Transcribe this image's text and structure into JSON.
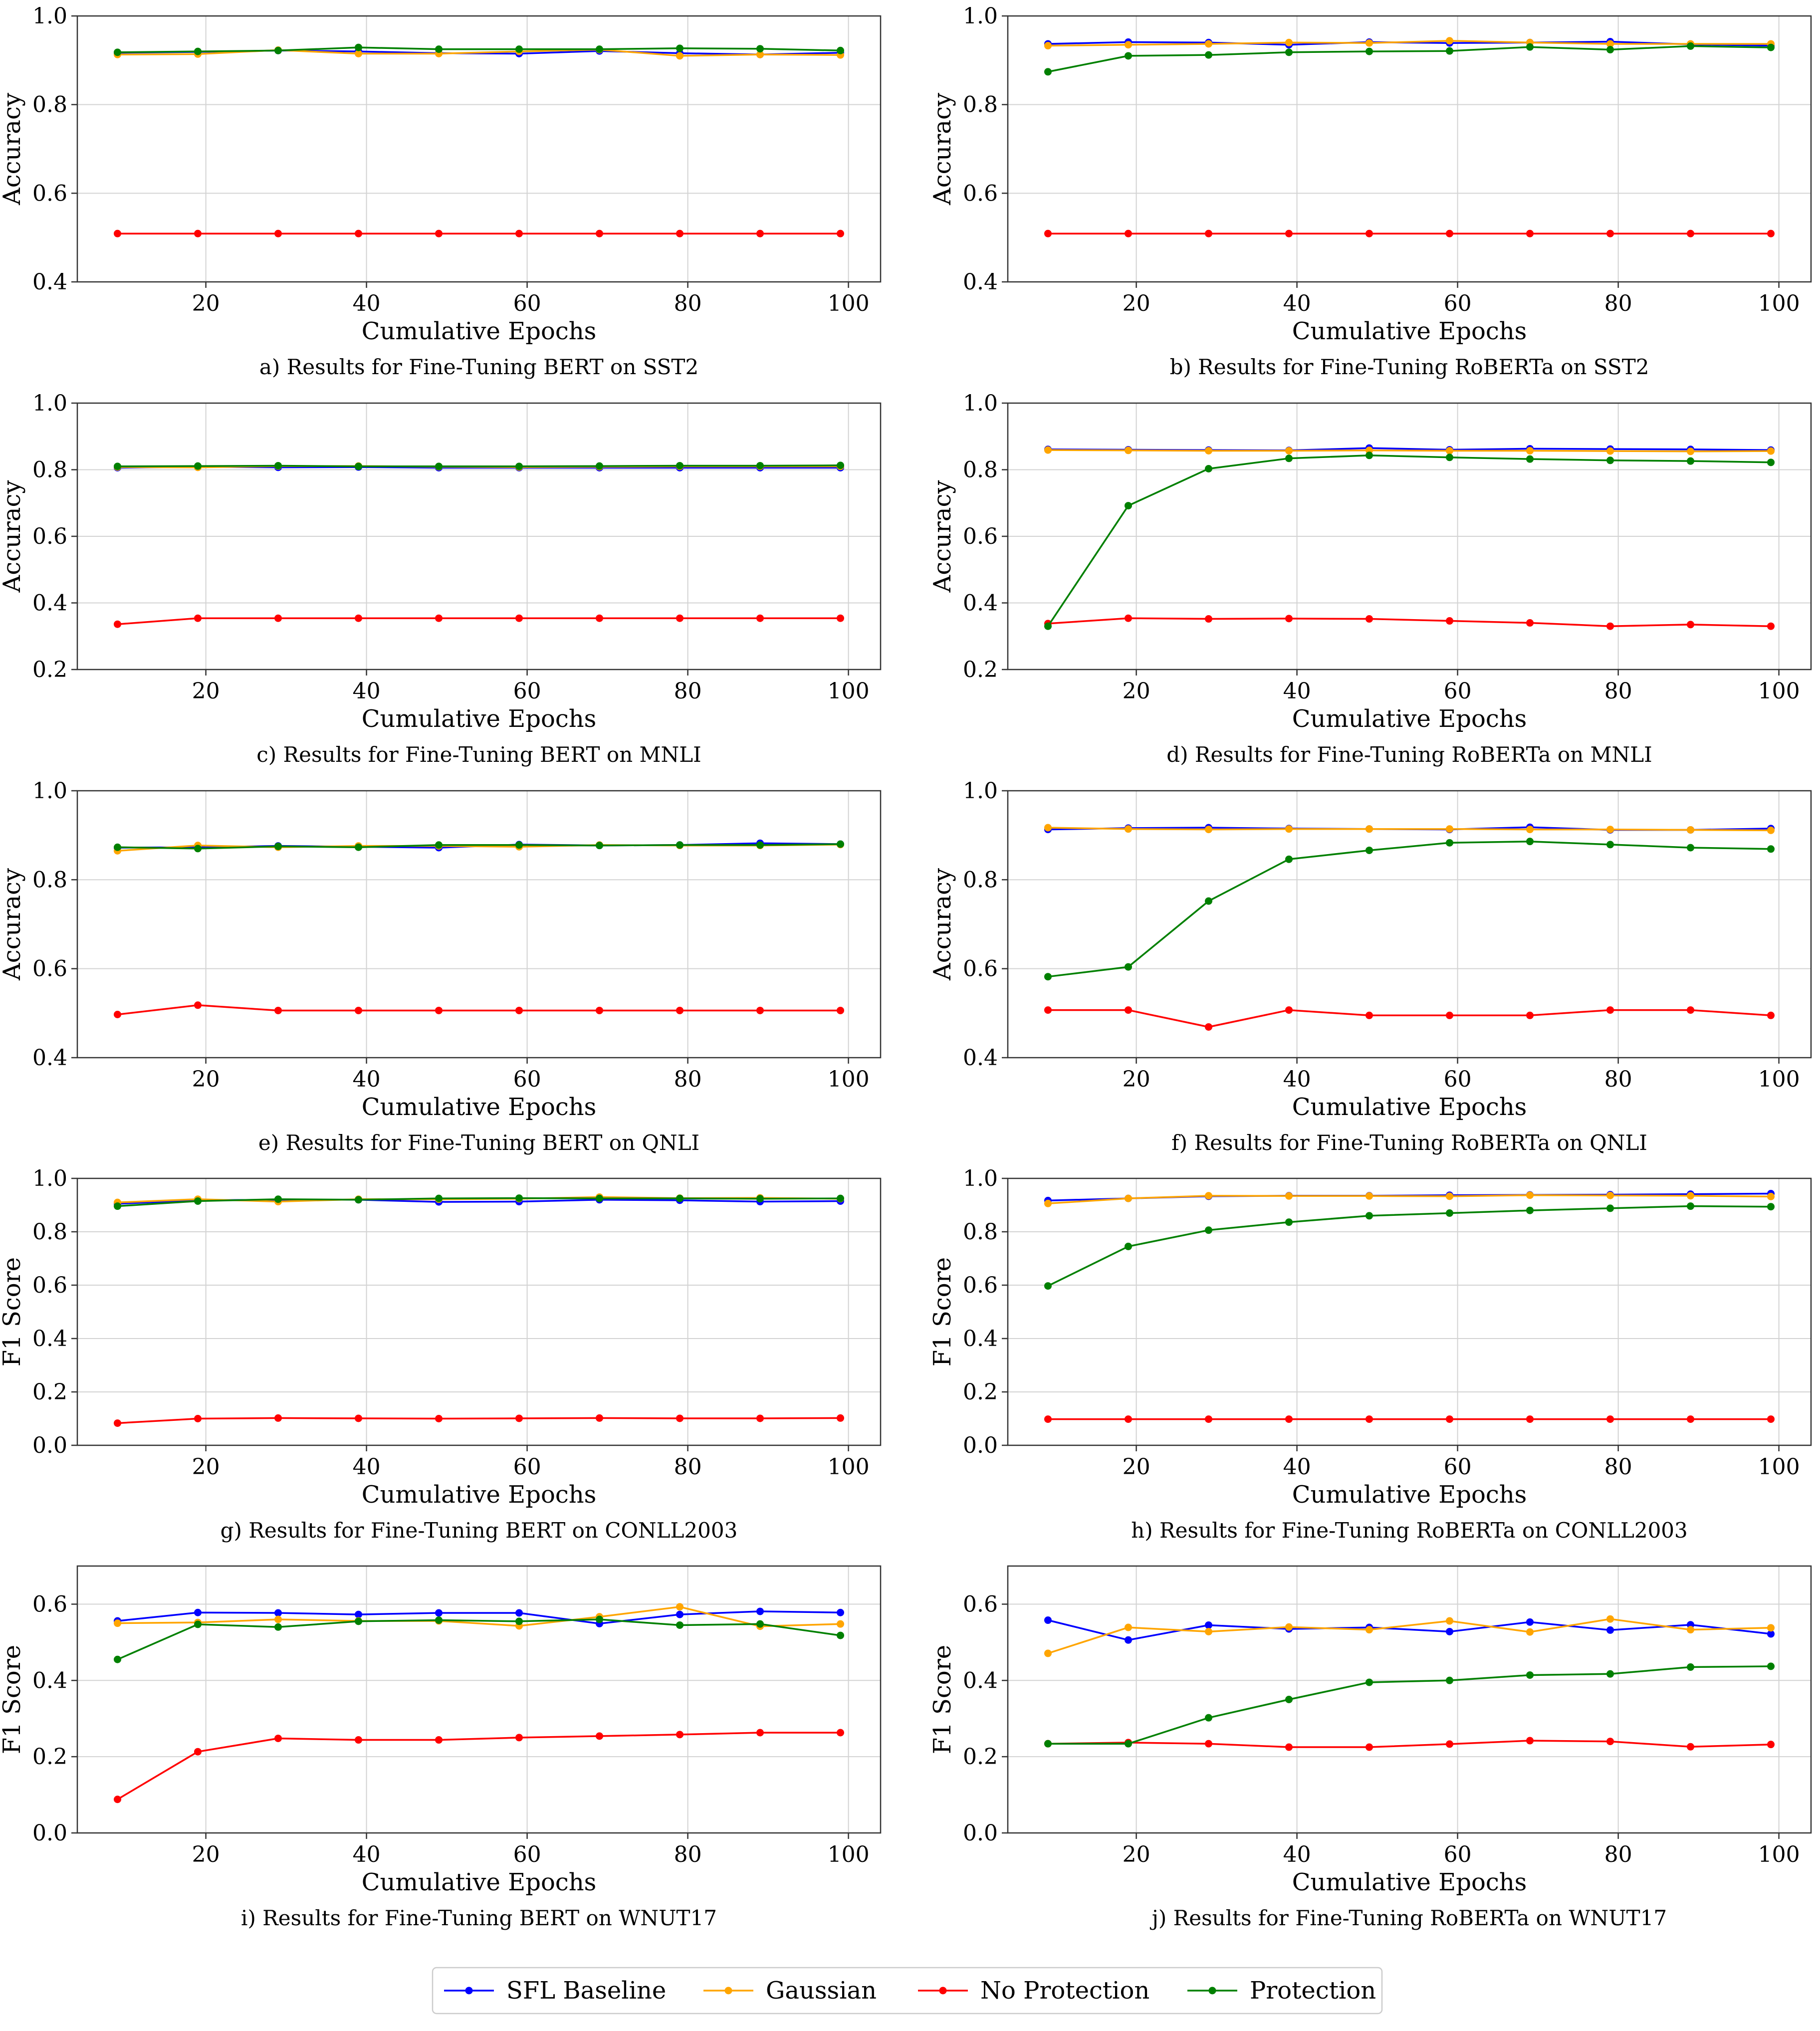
{
  "series_styles": [
    {
      "key": "baseline",
      "name": "SFL Baseline",
      "color": "#0000ff"
    },
    {
      "key": "gaussian",
      "name": "Gaussian",
      "color": "#ffa500"
    },
    {
      "key": "noprot",
      "name": "No Protection",
      "color": "#ff0000"
    },
    {
      "key": "prot",
      "name": "Protection",
      "color": "#008000"
    }
  ],
  "legend": {
    "placement": "bottom-center",
    "entries": [
      "SFL Baseline",
      "Gaussian",
      "No Protection",
      "Protection"
    ]
  },
  "chart_data": [
    {
      "id": "a",
      "type": "line",
      "caption": "a) Results for Fine-Tuning BERT on SST2",
      "xlabel": "Cumulative Epochs",
      "ylabel": "Accuracy",
      "xlim": [
        4,
        104
      ],
      "ylim": [
        0.4,
        1.0
      ],
      "xticks": [
        20,
        40,
        60,
        80,
        100
      ],
      "yticks": [
        0.4,
        0.6,
        0.8,
        1.0
      ],
      "xticklabels": [
        "20",
        "40",
        "60",
        "80",
        "100"
      ],
      "yticklabels": [
        "0.4",
        "0.6",
        "0.8",
        "1.0"
      ],
      "x": [
        9,
        19,
        29,
        39,
        49,
        59,
        69,
        79,
        89,
        99
      ],
      "series": [
        {
          "name": "SFL Baseline",
          "values": [
            0.917,
            0.919,
            0.922,
            0.92,
            0.916,
            0.915,
            0.921,
            0.916,
            0.913,
            0.917
          ]
        },
        {
          "name": "Gaussian",
          "values": [
            0.913,
            0.914,
            0.923,
            0.915,
            0.915,
            0.92,
            0.924,
            0.91,
            0.913,
            0.912
          ]
        },
        {
          "name": "No Protection",
          "values": [
            0.509,
            0.509,
            0.509,
            0.509,
            0.509,
            0.509,
            0.509,
            0.509,
            0.509,
            0.509
          ]
        },
        {
          "name": "Protection",
          "values": [
            0.918,
            0.92,
            0.922,
            0.929,
            0.925,
            0.925,
            0.925,
            0.927,
            0.926,
            0.922
          ]
        }
      ]
    },
    {
      "id": "b",
      "type": "line",
      "caption": "b) Results for Fine-Tuning RoBERTa on SST2",
      "xlabel": "Cumulative Epochs",
      "ylabel": "Accuracy",
      "xlim": [
        4,
        104
      ],
      "ylim": [
        0.4,
        1.0
      ],
      "xticks": [
        20,
        40,
        60,
        80,
        100
      ],
      "yticks": [
        0.4,
        0.6,
        0.8,
        1.0
      ],
      "xticklabels": [
        "20",
        "40",
        "60",
        "80",
        "100"
      ],
      "yticklabels": [
        "0.4",
        "0.6",
        "0.8",
        "1.0"
      ],
      "x": [
        9,
        19,
        29,
        39,
        49,
        59,
        69,
        79,
        89,
        99
      ],
      "series": [
        {
          "name": "SFL Baseline",
          "values": [
            0.937,
            0.941,
            0.94,
            0.935,
            0.941,
            0.939,
            0.94,
            0.942,
            0.936,
            0.933
          ]
        },
        {
          "name": "Gaussian",
          "values": [
            0.933,
            0.935,
            0.937,
            0.94,
            0.939,
            0.944,
            0.94,
            0.937,
            0.937,
            0.937
          ]
        },
        {
          "name": "No Protection",
          "values": [
            0.509,
            0.509,
            0.509,
            0.509,
            0.509,
            0.509,
            0.509,
            0.509,
            0.509,
            0.509
          ]
        },
        {
          "name": "Protection",
          "values": [
            0.874,
            0.91,
            0.912,
            0.918,
            0.92,
            0.921,
            0.93,
            0.924,
            0.932,
            0.929
          ]
        }
      ]
    },
    {
      "id": "c",
      "type": "line",
      "caption": "c) Results for Fine-Tuning BERT on MNLI",
      "xlabel": "Cumulative Epochs",
      "ylabel": "Accuracy",
      "xlim": [
        4,
        104
      ],
      "ylim": [
        0.2,
        1.0
      ],
      "xticks": [
        20,
        40,
        60,
        80,
        100
      ],
      "yticks": [
        0.2,
        0.4,
        0.6,
        0.8,
        1.0
      ],
      "xticklabels": [
        "20",
        "40",
        "60",
        "80",
        "100"
      ],
      "yticklabels": [
        "0.2",
        "0.4",
        "0.6",
        "0.8",
        "1.0"
      ],
      "x": [
        9,
        19,
        29,
        39,
        49,
        59,
        69,
        79,
        89,
        99
      ],
      "series": [
        {
          "name": "SFL Baseline",
          "values": [
            0.806,
            0.809,
            0.807,
            0.808,
            0.806,
            0.806,
            0.806,
            0.806,
            0.806,
            0.806
          ]
        },
        {
          "name": "Gaussian",
          "values": [
            0.808,
            0.807,
            0.811,
            0.811,
            0.809,
            0.808,
            0.809,
            0.81,
            0.81,
            0.81
          ]
        },
        {
          "name": "No Protection",
          "values": [
            0.336,
            0.354,
            0.354,
            0.354,
            0.354,
            0.354,
            0.354,
            0.354,
            0.354,
            0.354
          ]
        },
        {
          "name": "Protection",
          "values": [
            0.81,
            0.811,
            0.812,
            0.81,
            0.81,
            0.81,
            0.811,
            0.812,
            0.812,
            0.813
          ]
        }
      ]
    },
    {
      "id": "d",
      "type": "line",
      "caption": "d) Results for Fine-Tuning RoBERTa on MNLI",
      "xlabel": "Cumulative Epochs",
      "ylabel": "Accuracy",
      "xlim": [
        4,
        104
      ],
      "ylim": [
        0.2,
        1.0
      ],
      "xticks": [
        20,
        40,
        60,
        80,
        100
      ],
      "yticks": [
        0.2,
        0.4,
        0.6,
        0.8,
        1.0
      ],
      "xticklabels": [
        "20",
        "40",
        "60",
        "80",
        "100"
      ],
      "yticklabels": [
        "0.2",
        "0.4",
        "0.6",
        "0.8",
        "1.0"
      ],
      "x": [
        9,
        19,
        29,
        39,
        49,
        59,
        69,
        79,
        89,
        99
      ],
      "series": [
        {
          "name": "SFL Baseline",
          "values": [
            0.861,
            0.86,
            0.859,
            0.858,
            0.865,
            0.86,
            0.863,
            0.862,
            0.861,
            0.859
          ]
        },
        {
          "name": "Gaussian",
          "values": [
            0.859,
            0.858,
            0.857,
            0.857,
            0.858,
            0.857,
            0.857,
            0.856,
            0.855,
            0.856
          ]
        },
        {
          "name": "No Protection",
          "values": [
            0.338,
            0.354,
            0.352,
            0.353,
            0.352,
            0.346,
            0.34,
            0.33,
            0.335,
            0.33
          ]
        },
        {
          "name": "Protection",
          "values": [
            0.33,
            0.692,
            0.803,
            0.834,
            0.843,
            0.837,
            0.832,
            0.828,
            0.826,
            0.822
          ]
        }
      ]
    },
    {
      "id": "e",
      "type": "line",
      "caption": "e) Results for Fine-Tuning BERT on QNLI",
      "xlabel": "Cumulative Epochs",
      "ylabel": "Accuracy",
      "xlim": [
        4,
        104
      ],
      "ylim": [
        0.4,
        1.0
      ],
      "xticks": [
        20,
        40,
        60,
        80,
        100
      ],
      "yticks": [
        0.4,
        0.6,
        0.8,
        1.0
      ],
      "xticklabels": [
        "20",
        "40",
        "60",
        "80",
        "100"
      ],
      "yticklabels": [
        "0.4",
        "0.6",
        "0.8",
        "1.0"
      ],
      "x": [
        9,
        19,
        29,
        39,
        49,
        59,
        69,
        79,
        89,
        99
      ],
      "series": [
        {
          "name": "SFL Baseline",
          "values": [
            0.872,
            0.873,
            0.876,
            0.874,
            0.872,
            0.879,
            0.877,
            0.878,
            0.882,
            0.88
          ]
        },
        {
          "name": "Gaussian",
          "values": [
            0.865,
            0.877,
            0.873,
            0.876,
            0.876,
            0.874,
            0.878,
            0.877,
            0.877,
            0.879
          ]
        },
        {
          "name": "No Protection",
          "values": [
            0.497,
            0.518,
            0.506,
            0.506,
            0.506,
            0.506,
            0.506,
            0.506,
            0.506,
            0.506
          ]
        },
        {
          "name": "Protection",
          "values": [
            0.873,
            0.87,
            0.875,
            0.873,
            0.878,
            0.878,
            0.877,
            0.878,
            0.878,
            0.88
          ]
        }
      ]
    },
    {
      "id": "f",
      "type": "line",
      "caption": "f) Results for Fine-Tuning RoBERTa on QNLI",
      "xlabel": "Cumulative Epochs",
      "ylabel": "Accuracy",
      "xlim": [
        4,
        104
      ],
      "ylim": [
        0.4,
        1.0
      ],
      "xticks": [
        20,
        40,
        60,
        80,
        100
      ],
      "yticks": [
        0.4,
        0.6,
        0.8,
        1.0
      ],
      "xticklabels": [
        "20",
        "40",
        "60",
        "80",
        "100"
      ],
      "yticklabels": [
        "0.4",
        "0.6",
        "0.8",
        "1.0"
      ],
      "x": [
        9,
        19,
        29,
        39,
        49,
        59,
        69,
        79,
        89,
        99
      ],
      "series": [
        {
          "name": "SFL Baseline",
          "values": [
            0.913,
            0.916,
            0.917,
            0.915,
            0.914,
            0.913,
            0.918,
            0.912,
            0.912,
            0.915
          ]
        },
        {
          "name": "Gaussian",
          "values": [
            0.917,
            0.914,
            0.913,
            0.914,
            0.914,
            0.914,
            0.913,
            0.913,
            0.912,
            0.911
          ]
        },
        {
          "name": "No Protection",
          "values": [
            0.507,
            0.507,
            0.469,
            0.507,
            0.495,
            0.495,
            0.495,
            0.507,
            0.507,
            0.495
          ]
        },
        {
          "name": "Protection",
          "values": [
            0.582,
            0.604,
            0.752,
            0.846,
            0.866,
            0.883,
            0.886,
            0.879,
            0.872,
            0.869
          ]
        }
      ]
    },
    {
      "id": "g",
      "type": "line",
      "caption": "g) Results for Fine-Tuning BERT on CONLL2003",
      "xlabel": "Cumulative Epochs",
      "ylabel": "F1 Score",
      "xlim": [
        4,
        104
      ],
      "ylim": [
        0.0,
        1.0
      ],
      "xticks": [
        20,
        40,
        60,
        80,
        100
      ],
      "yticks": [
        0.0,
        0.2,
        0.4,
        0.6,
        0.8,
        1.0
      ],
      "xticklabels": [
        "20",
        "40",
        "60",
        "80",
        "100"
      ],
      "yticklabels": [
        "0.0",
        "0.2",
        "0.4",
        "0.6",
        "0.8",
        "1.0"
      ],
      "x": [
        9,
        19,
        29,
        39,
        49,
        59,
        69,
        79,
        89,
        99
      ],
      "series": [
        {
          "name": "SFL Baseline",
          "values": [
            0.905,
            0.918,
            0.92,
            0.92,
            0.912,
            0.913,
            0.92,
            0.918,
            0.913,
            0.915
          ]
        },
        {
          "name": "Gaussian",
          "values": [
            0.91,
            0.922,
            0.913,
            0.922,
            0.922,
            0.924,
            0.93,
            0.926,
            0.927,
            0.924
          ]
        },
        {
          "name": "No Protection",
          "values": [
            0.083,
            0.1,
            0.102,
            0.101,
            0.1,
            0.101,
            0.102,
            0.101,
            0.101,
            0.102
          ]
        },
        {
          "name": "Protection",
          "values": [
            0.896,
            0.915,
            0.922,
            0.92,
            0.925,
            0.926,
            0.925,
            0.925,
            0.924,
            0.925
          ]
        }
      ]
    },
    {
      "id": "h",
      "type": "line",
      "caption": "h) Results for Fine-Tuning RoBERTa on CONLL2003",
      "xlabel": "Cumulative Epochs",
      "ylabel": "F1 Score",
      "xlim": [
        4,
        104
      ],
      "ylim": [
        0.0,
        1.0
      ],
      "xticks": [
        20,
        40,
        60,
        80,
        100
      ],
      "yticks": [
        0.0,
        0.2,
        0.4,
        0.6,
        0.8,
        1.0
      ],
      "xticklabels": [
        "20",
        "40",
        "60",
        "80",
        "100"
      ],
      "yticklabels": [
        "0.0",
        "0.2",
        "0.4",
        "0.6",
        "0.8",
        "1.0"
      ],
      "x": [
        9,
        19,
        29,
        39,
        49,
        59,
        69,
        79,
        89,
        99
      ],
      "series": [
        {
          "name": "SFL Baseline",
          "values": [
            0.917,
            0.925,
            0.933,
            0.935,
            0.935,
            0.937,
            0.938,
            0.939,
            0.941,
            0.943
          ]
        },
        {
          "name": "Gaussian",
          "values": [
            0.906,
            0.925,
            0.935,
            0.934,
            0.934,
            0.933,
            0.937,
            0.936,
            0.935,
            0.932
          ]
        },
        {
          "name": "No Protection",
          "values": [
            0.098,
            0.098,
            0.098,
            0.098,
            0.098,
            0.098,
            0.098,
            0.098,
            0.098,
            0.098
          ]
        },
        {
          "name": "Protection",
          "values": [
            0.597,
            0.745,
            0.806,
            0.836,
            0.86,
            0.87,
            0.88,
            0.888,
            0.896,
            0.894
          ]
        }
      ]
    },
    {
      "id": "i",
      "type": "line",
      "caption": "i) Results for Fine-Tuning BERT on WNUT17",
      "xlabel": "Cumulative Epochs",
      "ylabel": "F1 Score",
      "xlim": [
        4,
        104
      ],
      "ylim": [
        0.0,
        0.7
      ],
      "xticks": [
        20,
        40,
        60,
        80,
        100
      ],
      "yticks": [
        0.0,
        0.2,
        0.4,
        0.6
      ],
      "xticklabels": [
        "20",
        "40",
        "60",
        "80",
        "100"
      ],
      "yticklabels": [
        "0.0",
        "0.2",
        "0.4",
        "0.6"
      ],
      "x": [
        9,
        19,
        29,
        39,
        49,
        59,
        69,
        79,
        89,
        99
      ],
      "series": [
        {
          "name": "SFL Baseline",
          "values": [
            0.556,
            0.578,
            0.577,
            0.573,
            0.577,
            0.577,
            0.549,
            0.573,
            0.581,
            0.578
          ]
        },
        {
          "name": "Gaussian",
          "values": [
            0.55,
            0.552,
            0.56,
            0.556,
            0.556,
            0.543,
            0.567,
            0.593,
            0.542,
            0.548
          ]
        },
        {
          "name": "No Protection",
          "values": [
            0.088,
            0.213,
            0.248,
            0.244,
            0.244,
            0.25,
            0.254,
            0.258,
            0.263,
            0.263
          ]
        },
        {
          "name": "Protection",
          "values": [
            0.455,
            0.547,
            0.54,
            0.555,
            0.558,
            0.555,
            0.56,
            0.545,
            0.548,
            0.518
          ]
        }
      ]
    },
    {
      "id": "j",
      "type": "line",
      "caption": "j) Results for Fine-Tuning RoBERTa on WNUT17",
      "xlabel": "Cumulative Epochs",
      "ylabel": "F1 Score",
      "xlim": [
        4,
        104
      ],
      "ylim": [
        0.0,
        0.7
      ],
      "xticks": [
        20,
        40,
        60,
        80,
        100
      ],
      "yticks": [
        0.0,
        0.2,
        0.4,
        0.6
      ],
      "xticklabels": [
        "20",
        "40",
        "60",
        "80",
        "100"
      ],
      "yticklabels": [
        "0.0",
        "0.2",
        "0.4",
        "0.6"
      ],
      "x": [
        9,
        19,
        29,
        39,
        49,
        59,
        69,
        79,
        89,
        99
      ],
      "series": [
        {
          "name": "SFL Baseline",
          "values": [
            0.558,
            0.506,
            0.545,
            0.535,
            0.539,
            0.528,
            0.553,
            0.532,
            0.546,
            0.522
          ]
        },
        {
          "name": "Gaussian",
          "values": [
            0.471,
            0.539,
            0.528,
            0.54,
            0.533,
            0.556,
            0.527,
            0.561,
            0.533,
            0.538
          ]
        },
        {
          "name": "No Protection",
          "values": [
            0.234,
            0.237,
            0.234,
            0.225,
            0.225,
            0.233,
            0.242,
            0.24,
            0.226,
            0.232
          ]
        },
        {
          "name": "Protection",
          "values": [
            0.234,
            0.234,
            0.302,
            0.35,
            0.395,
            0.4,
            0.414,
            0.417,
            0.435,
            0.437
          ]
        }
      ]
    }
  ]
}
